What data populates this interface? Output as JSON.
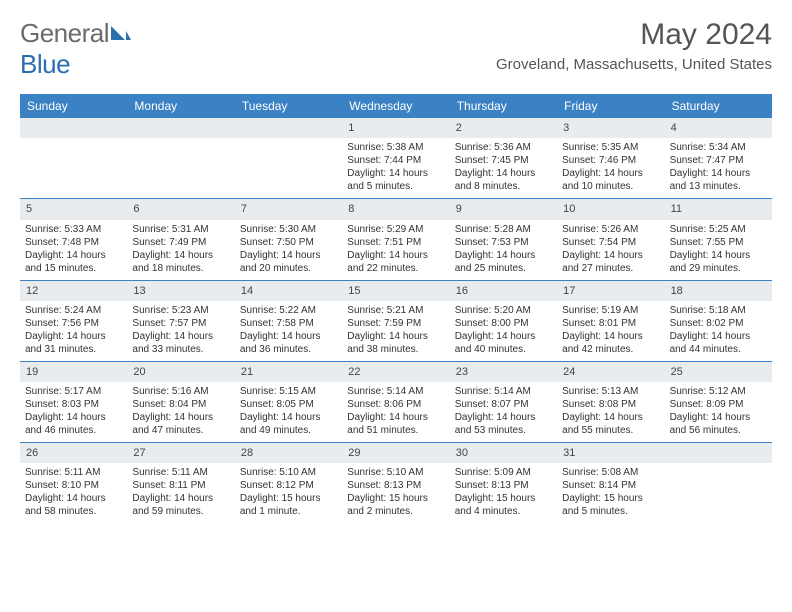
{
  "logo": {
    "word1": "General",
    "word2": "Blue"
  },
  "title": "May 2024",
  "location": "Groveland, Massachusetts, United States",
  "colors": {
    "header_bg": "#3b82c4",
    "header_text": "#ffffff",
    "daynum_bg": "#e9ecef",
    "border": "#3b82c4",
    "text": "#333333",
    "logo_gray": "#6b6b6b",
    "logo_blue": "#2a6fb0"
  },
  "day_labels": [
    "Sunday",
    "Monday",
    "Tuesday",
    "Wednesday",
    "Thursday",
    "Friday",
    "Saturday"
  ],
  "weeks": [
    [
      {
        "n": "",
        "sr": "",
        "ss": "",
        "dl": ""
      },
      {
        "n": "",
        "sr": "",
        "ss": "",
        "dl": ""
      },
      {
        "n": "",
        "sr": "",
        "ss": "",
        "dl": ""
      },
      {
        "n": "1",
        "sr": "Sunrise: 5:38 AM",
        "ss": "Sunset: 7:44 PM",
        "dl": "Daylight: 14 hours and 5 minutes."
      },
      {
        "n": "2",
        "sr": "Sunrise: 5:36 AM",
        "ss": "Sunset: 7:45 PM",
        "dl": "Daylight: 14 hours and 8 minutes."
      },
      {
        "n": "3",
        "sr": "Sunrise: 5:35 AM",
        "ss": "Sunset: 7:46 PM",
        "dl": "Daylight: 14 hours and 10 minutes."
      },
      {
        "n": "4",
        "sr": "Sunrise: 5:34 AM",
        "ss": "Sunset: 7:47 PM",
        "dl": "Daylight: 14 hours and 13 minutes."
      }
    ],
    [
      {
        "n": "5",
        "sr": "Sunrise: 5:33 AM",
        "ss": "Sunset: 7:48 PM",
        "dl": "Daylight: 14 hours and 15 minutes."
      },
      {
        "n": "6",
        "sr": "Sunrise: 5:31 AM",
        "ss": "Sunset: 7:49 PM",
        "dl": "Daylight: 14 hours and 18 minutes."
      },
      {
        "n": "7",
        "sr": "Sunrise: 5:30 AM",
        "ss": "Sunset: 7:50 PM",
        "dl": "Daylight: 14 hours and 20 minutes."
      },
      {
        "n": "8",
        "sr": "Sunrise: 5:29 AM",
        "ss": "Sunset: 7:51 PM",
        "dl": "Daylight: 14 hours and 22 minutes."
      },
      {
        "n": "9",
        "sr": "Sunrise: 5:28 AM",
        "ss": "Sunset: 7:53 PM",
        "dl": "Daylight: 14 hours and 25 minutes."
      },
      {
        "n": "10",
        "sr": "Sunrise: 5:26 AM",
        "ss": "Sunset: 7:54 PM",
        "dl": "Daylight: 14 hours and 27 minutes."
      },
      {
        "n": "11",
        "sr": "Sunrise: 5:25 AM",
        "ss": "Sunset: 7:55 PM",
        "dl": "Daylight: 14 hours and 29 minutes."
      }
    ],
    [
      {
        "n": "12",
        "sr": "Sunrise: 5:24 AM",
        "ss": "Sunset: 7:56 PM",
        "dl": "Daylight: 14 hours and 31 minutes."
      },
      {
        "n": "13",
        "sr": "Sunrise: 5:23 AM",
        "ss": "Sunset: 7:57 PM",
        "dl": "Daylight: 14 hours and 33 minutes."
      },
      {
        "n": "14",
        "sr": "Sunrise: 5:22 AM",
        "ss": "Sunset: 7:58 PM",
        "dl": "Daylight: 14 hours and 36 minutes."
      },
      {
        "n": "15",
        "sr": "Sunrise: 5:21 AM",
        "ss": "Sunset: 7:59 PM",
        "dl": "Daylight: 14 hours and 38 minutes."
      },
      {
        "n": "16",
        "sr": "Sunrise: 5:20 AM",
        "ss": "Sunset: 8:00 PM",
        "dl": "Daylight: 14 hours and 40 minutes."
      },
      {
        "n": "17",
        "sr": "Sunrise: 5:19 AM",
        "ss": "Sunset: 8:01 PM",
        "dl": "Daylight: 14 hours and 42 minutes."
      },
      {
        "n": "18",
        "sr": "Sunrise: 5:18 AM",
        "ss": "Sunset: 8:02 PM",
        "dl": "Daylight: 14 hours and 44 minutes."
      }
    ],
    [
      {
        "n": "19",
        "sr": "Sunrise: 5:17 AM",
        "ss": "Sunset: 8:03 PM",
        "dl": "Daylight: 14 hours and 46 minutes."
      },
      {
        "n": "20",
        "sr": "Sunrise: 5:16 AM",
        "ss": "Sunset: 8:04 PM",
        "dl": "Daylight: 14 hours and 47 minutes."
      },
      {
        "n": "21",
        "sr": "Sunrise: 5:15 AM",
        "ss": "Sunset: 8:05 PM",
        "dl": "Daylight: 14 hours and 49 minutes."
      },
      {
        "n": "22",
        "sr": "Sunrise: 5:14 AM",
        "ss": "Sunset: 8:06 PM",
        "dl": "Daylight: 14 hours and 51 minutes."
      },
      {
        "n": "23",
        "sr": "Sunrise: 5:14 AM",
        "ss": "Sunset: 8:07 PM",
        "dl": "Daylight: 14 hours and 53 minutes."
      },
      {
        "n": "24",
        "sr": "Sunrise: 5:13 AM",
        "ss": "Sunset: 8:08 PM",
        "dl": "Daylight: 14 hours and 55 minutes."
      },
      {
        "n": "25",
        "sr": "Sunrise: 5:12 AM",
        "ss": "Sunset: 8:09 PM",
        "dl": "Daylight: 14 hours and 56 minutes."
      }
    ],
    [
      {
        "n": "26",
        "sr": "Sunrise: 5:11 AM",
        "ss": "Sunset: 8:10 PM",
        "dl": "Daylight: 14 hours and 58 minutes."
      },
      {
        "n": "27",
        "sr": "Sunrise: 5:11 AM",
        "ss": "Sunset: 8:11 PM",
        "dl": "Daylight: 14 hours and 59 minutes."
      },
      {
        "n": "28",
        "sr": "Sunrise: 5:10 AM",
        "ss": "Sunset: 8:12 PM",
        "dl": "Daylight: 15 hours and 1 minute."
      },
      {
        "n": "29",
        "sr": "Sunrise: 5:10 AM",
        "ss": "Sunset: 8:13 PM",
        "dl": "Daylight: 15 hours and 2 minutes."
      },
      {
        "n": "30",
        "sr": "Sunrise: 5:09 AM",
        "ss": "Sunset: 8:13 PM",
        "dl": "Daylight: 15 hours and 4 minutes."
      },
      {
        "n": "31",
        "sr": "Sunrise: 5:08 AM",
        "ss": "Sunset: 8:14 PM",
        "dl": "Daylight: 15 hours and 5 minutes."
      },
      {
        "n": "",
        "sr": "",
        "ss": "",
        "dl": ""
      }
    ]
  ]
}
